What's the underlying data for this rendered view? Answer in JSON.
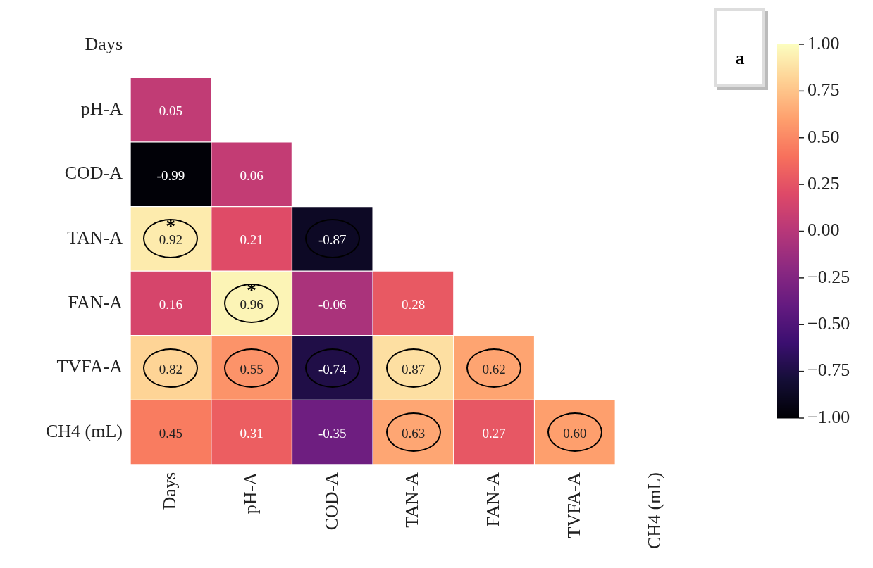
{
  "chart_data": {
    "type": "heatmap",
    "categories": [
      "Days",
      "pH-A",
      "COD-A",
      "TAN-A",
      "FAN-A",
      "TVFA-A",
      "CH4 (mL)"
    ],
    "y_categories": [
      "Days",
      "pH-A",
      "COD-A",
      "TAN-A",
      "FAN-A",
      "TVFA-A",
      "CH4 (mL)"
    ],
    "cells": [
      [
        null,
        null,
        null,
        null,
        null,
        null,
        null
      ],
      [
        0.05,
        null,
        null,
        null,
        null,
        null,
        null
      ],
      [
        -0.99,
        0.06,
        null,
        null,
        null,
        null,
        null
      ],
      [
        0.92,
        0.21,
        -0.87,
        null,
        null,
        null,
        null
      ],
      [
        0.16,
        0.96,
        -0.06,
        0.28,
        null,
        null,
        null
      ],
      [
        0.82,
        0.55,
        -0.74,
        0.87,
        0.62,
        null,
        null
      ],
      [
        0.45,
        0.31,
        -0.35,
        0.63,
        0.27,
        0.6,
        null
      ]
    ],
    "cell_labels": [
      [
        null,
        null,
        null,
        null,
        null,
        null,
        null
      ],
      [
        "0.05",
        null,
        null,
        null,
        null,
        null,
        null
      ],
      [
        "-0.99",
        "0.06",
        null,
        null,
        null,
        null,
        null
      ],
      [
        "0.92",
        "0.21",
        "-0.87",
        null,
        null,
        null,
        null
      ],
      [
        "0.16",
        "0.96",
        "-0.06",
        "0.28",
        null,
        null,
        null
      ],
      [
        "0.82",
        "0.55",
        "-0.74",
        "0.87",
        "0.62",
        null,
        null
      ],
      [
        "0.45",
        "0.31",
        "-0.35",
        "0.63",
        "0.27",
        "0.60",
        null
      ]
    ],
    "clim": [
      -1,
      1
    ],
    "cticks": [
      {
        "value": 1,
        "label": "1.00"
      },
      {
        "value": 0.75,
        "label": "0.75"
      },
      {
        "value": 0.5,
        "label": "0.50"
      },
      {
        "value": 0.25,
        "label": "0.25"
      },
      {
        "value": 0,
        "label": "0.00"
      },
      {
        "value": -0.25,
        "label": "−0.25"
      },
      {
        "value": -0.5,
        "label": "−0.50"
      },
      {
        "value": -0.75,
        "label": "−0.75"
      },
      {
        "value": -1,
        "label": "−1.00"
      }
    ],
    "annotations": [
      "a",
      "*",
      "*"
    ]
  }
}
